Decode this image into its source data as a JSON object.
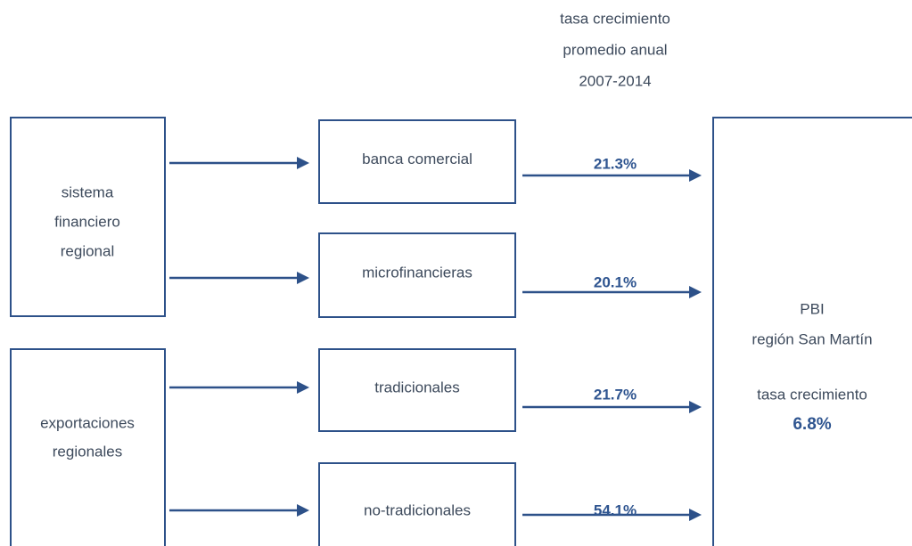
{
  "header": {
    "lines": [
      "tasa crecimiento",
      "promedio anual",
      "2007-2014"
    ]
  },
  "sources": [
    {
      "lines": [
        "sistema",
        "financiero",
        "regional"
      ]
    },
    {
      "lines": [
        "exportaciones",
        "regionales"
      ]
    }
  ],
  "channels": [
    {
      "label": "banca comercial",
      "rate": "21.3%"
    },
    {
      "label": "microfinancieras",
      "rate": "20.1%"
    },
    {
      "label": "tradicionales",
      "rate": "21.7%"
    },
    {
      "label": "no-tradicionales",
      "rate": "54.1%"
    }
  ],
  "result": {
    "lines": [
      "PBI",
      "región San Martín"
    ],
    "rate_label": "tasa crecimiento",
    "rate": "6.8%"
  }
}
